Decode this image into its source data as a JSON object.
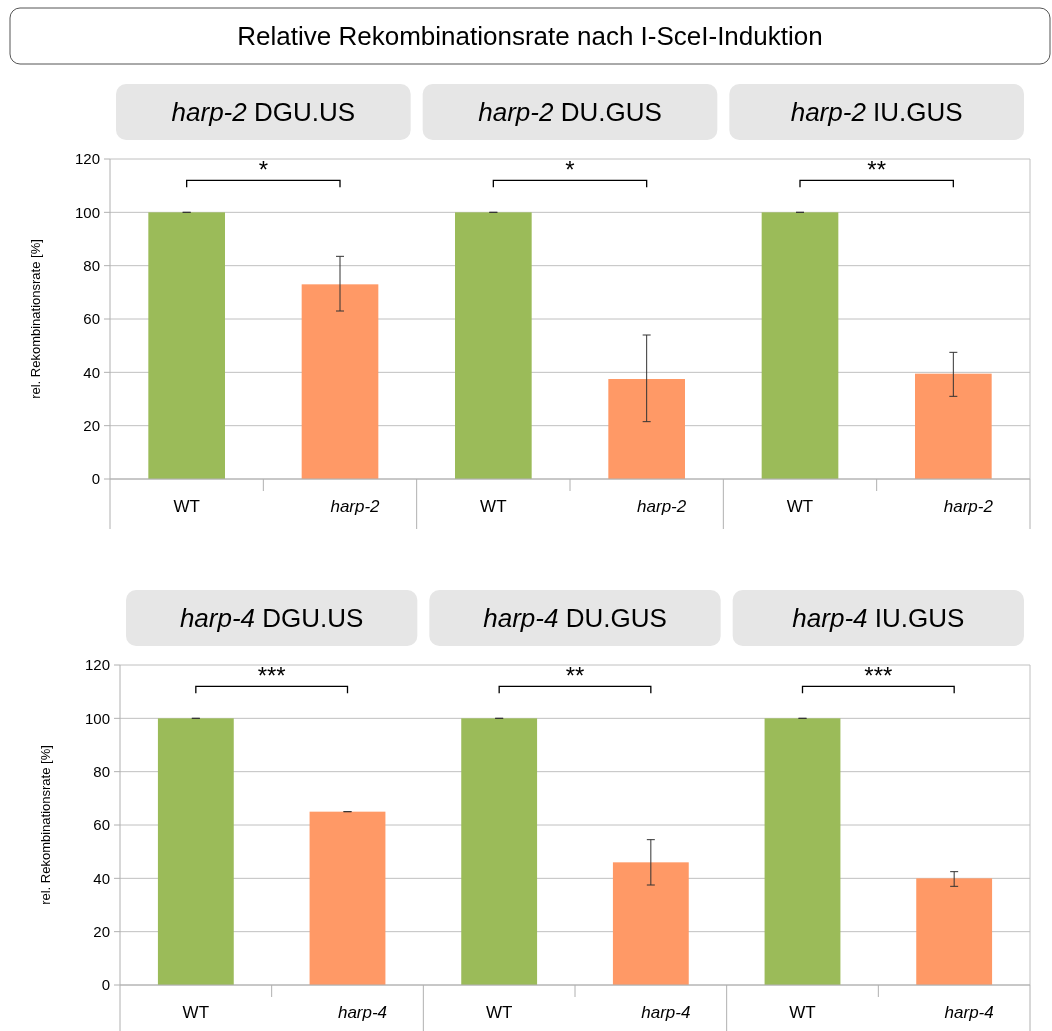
{
  "chart_data": [
    {
      "type": "bar",
      "title": "Relative Rekombinationsrate nach I-SceI-Induktion",
      "ylabel": "rel. Rekombinationsrate [%]",
      "categories": [
        "WT",
        "harp-2",
        "WT",
        "harp-2",
        "WT",
        "harp-2"
      ],
      "values": [
        100,
        73,
        100,
        37.5,
        100,
        39.5
      ],
      "colors": [
        "#9bbb59",
        "#ff9966",
        "#9bbb59",
        "#ff9966",
        "#9bbb59",
        "#ff9966"
      ],
      "errors": [
        0,
        [
          63,
          83.5
        ],
        0,
        [
          21.5,
          54
        ],
        0,
        [
          31,
          47.5
        ]
      ],
      "ylim": [
        0,
        120
      ],
      "yticks": [
        0,
        20,
        40,
        60,
        80,
        100,
        120
      ],
      "grid": "y",
      "annotations": [
        "harp-2 DGU.US",
        "harp-2 DU.GUS",
        "harp-2 IU.GUS",
        "*",
        "*",
        "**"
      ]
    },
    {
      "type": "bar",
      "ylabel": "rel. Rekombinationsrate [%]",
      "categories": [
        "WT",
        "harp-4",
        "WT",
        "harp-4",
        "WT",
        "harp-4"
      ],
      "values": [
        100,
        65,
        100,
        46,
        100,
        40
      ],
      "colors": [
        "#9bbb59",
        "#ff9966",
        "#9bbb59",
        "#ff9966",
        "#9bbb59",
        "#ff9966"
      ],
      "errors": [
        0,
        0,
        0,
        [
          37.5,
          54.5
        ],
        0,
        [
          37,
          42.5
        ]
      ],
      "ylim": [
        0,
        120
      ],
      "yticks": [
        0,
        20,
        40,
        60,
        80,
        100,
        120
      ],
      "grid": "y",
      "annotations": [
        "harp-4 DGU.US",
        "harp-4 DU.GUS",
        "harp-4 IU.GUS",
        "***",
        "**",
        "***"
      ]
    }
  ]
}
